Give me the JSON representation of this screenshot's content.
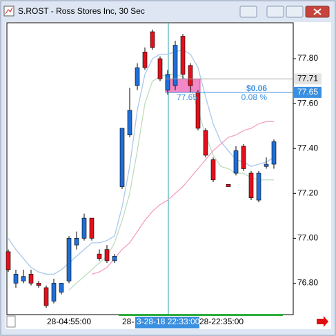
{
  "chart_data": {
    "type": "candlestick",
    "title": "S.ROST - Ross Stores Inc, 30 Sec",
    "ylim": [
      76.66,
      77.96
    ],
    "yticks": [
      {
        "value": 76.8,
        "label": "76.80"
      },
      {
        "value": 77.0,
        "label": "77.00"
      },
      {
        "value": 77.2,
        "label": "77.20"
      },
      {
        "value": 77.4,
        "label": "77.40"
      },
      {
        "value": 77.6,
        "label": "77.60"
      },
      {
        "value": 77.8,
        "label": "77.80"
      }
    ],
    "x_labels": [
      "28-04:55:00",
      "28-",
      "3-28-18 22:33:00",
      "28-22:35:00"
    ],
    "up_color": "#1f6fd6",
    "down_color": "#e3101c",
    "open": [
      76.94,
      76.8,
      76.81,
      76.84,
      76.8,
      76.78,
      76.72,
      76.76,
      76.81,
      76.97,
      77.0,
      77.09,
      76.93,
      76.95,
      76.9,
      77.23,
      77.46,
      77.68,
      77.83,
      77.92,
      77.8,
      77.66,
      77.68,
      77.9,
      77.77,
      77.65,
      77.48,
      77.35,
      null,
      77.24,
      77.29,
      77.41,
      77.29,
      77.17,
      77.32,
      77.33
    ],
    "high": [
      76.95,
      76.86,
      76.86,
      76.86,
      76.81,
      76.79,
      76.82,
      76.8,
      77.01,
      77.03,
      77.11,
      77.09,
      76.95,
      76.97,
      76.93,
      77.49,
      77.67,
      77.78,
      77.85,
      77.93,
      77.81,
      77.75,
      77.88,
      77.91,
      77.78,
      77.66,
      77.49,
      77.36,
      null,
      77.24,
      77.41,
      77.42,
      77.3,
      77.3,
      77.36,
      77.44
    ],
    "low": [
      76.85,
      76.78,
      76.8,
      76.79,
      76.78,
      76.69,
      76.71,
      76.75,
      76.8,
      76.95,
      76.99,
      76.99,
      76.9,
      76.89,
      76.89,
      77.22,
      77.45,
      77.66,
      77.75,
      77.84,
      77.7,
      77.64,
      77.66,
      77.71,
      77.65,
      77.48,
      77.36,
      77.25,
      null,
      77.23,
      77.28,
      77.3,
      77.17,
      77.16,
      77.31,
      77.31
    ],
    "close": [
      76.86,
      76.84,
      76.83,
      76.8,
      76.79,
      76.7,
      76.8,
      76.8,
      77.0,
      77.0,
      77.09,
      77.0,
      76.91,
      76.9,
      76.92,
      77.49,
      77.57,
      77.76,
      77.76,
      77.85,
      77.71,
      77.73,
      77.86,
      77.73,
      77.68,
      77.49,
      77.37,
      77.26,
      null,
      77.23,
      77.39,
      77.31,
      77.18,
      77.29,
      77.33,
      77.43
    ],
    "series": [
      {
        "color": "#a8c8ec",
        "values": [
          77.0,
          76.95,
          76.91,
          76.87,
          76.85,
          76.84,
          76.84,
          76.86,
          76.89,
          76.92,
          76.95,
          76.98,
          76.98,
          76.99,
          77.01,
          77.14,
          77.32,
          77.57,
          77.73,
          77.8,
          77.82,
          77.82,
          77.83,
          77.84,
          77.82,
          77.76,
          77.63,
          77.51,
          77.43,
          77.39,
          77.35,
          77.34,
          77.32,
          77.33,
          77.34,
          77.36
        ]
      },
      {
        "color": "#bcdcbc",
        "values": [
          null,
          null,
          null,
          null,
          null,
          null,
          null,
          null,
          76.77,
          76.8,
          76.83,
          76.86,
          76.89,
          76.92,
          76.98,
          77.08,
          77.2,
          77.39,
          77.6,
          77.7,
          77.72,
          77.73,
          77.73,
          77.72,
          77.68,
          77.57,
          77.46,
          77.37,
          77.32,
          77.31,
          77.29,
          77.29,
          77.27,
          77.26,
          77.26,
          77.26
        ]
      },
      {
        "color": "#f4a0c0",
        "values": [
          null,
          null,
          null,
          null,
          null,
          null,
          null,
          null,
          null,
          null,
          null,
          76.84,
          76.85,
          76.87,
          76.91,
          76.95,
          76.98,
          77.03,
          77.08,
          77.12,
          77.15,
          77.17,
          77.2,
          77.23,
          77.27,
          77.31,
          77.35,
          77.39,
          77.42,
          77.45,
          77.46,
          77.48,
          77.49,
          77.51,
          77.52,
          77.52
        ]
      }
    ],
    "price_markers": [
      77.71,
      77.65
    ],
    "annotations": [
      "$0.06",
      "0.08 %",
      "77.65"
    ]
  }
}
